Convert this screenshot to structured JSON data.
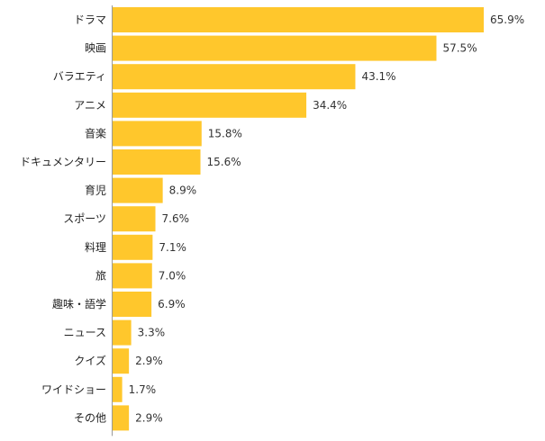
{
  "chart_data": {
    "type": "bar",
    "orientation": "horizontal",
    "categories": [
      "ドラマ",
      "映画",
      "バラエティ",
      "アニメ",
      "音楽",
      "ドキュメンタリー",
      "育児",
      "スポーツ",
      "料理",
      "旅",
      "趣味・語学",
      "ニュース",
      "クイズ",
      "ワイドショー",
      "その他"
    ],
    "values": [
      65.9,
      57.5,
      43.1,
      34.4,
      15.8,
      15.6,
      8.9,
      7.6,
      7.1,
      7.0,
      6.9,
      3.3,
      2.9,
      1.7,
      2.9
    ],
    "value_labels": [
      "65.9%",
      "57.5%",
      "43.1%",
      "34.4%",
      "15.8%",
      "15.6%",
      "8.9%",
      "7.6%",
      "7.1%",
      "7.0%",
      "6.9%",
      "3.3%",
      "2.9%",
      "1.7%",
      "2.9%"
    ],
    "title": "",
    "xlabel": "",
    "ylabel": "",
    "xlim": [
      0,
      65.9
    ],
    "grid": false,
    "legend": "none",
    "bar_color": "#FFC72C",
    "axis_color": "#999999"
  }
}
